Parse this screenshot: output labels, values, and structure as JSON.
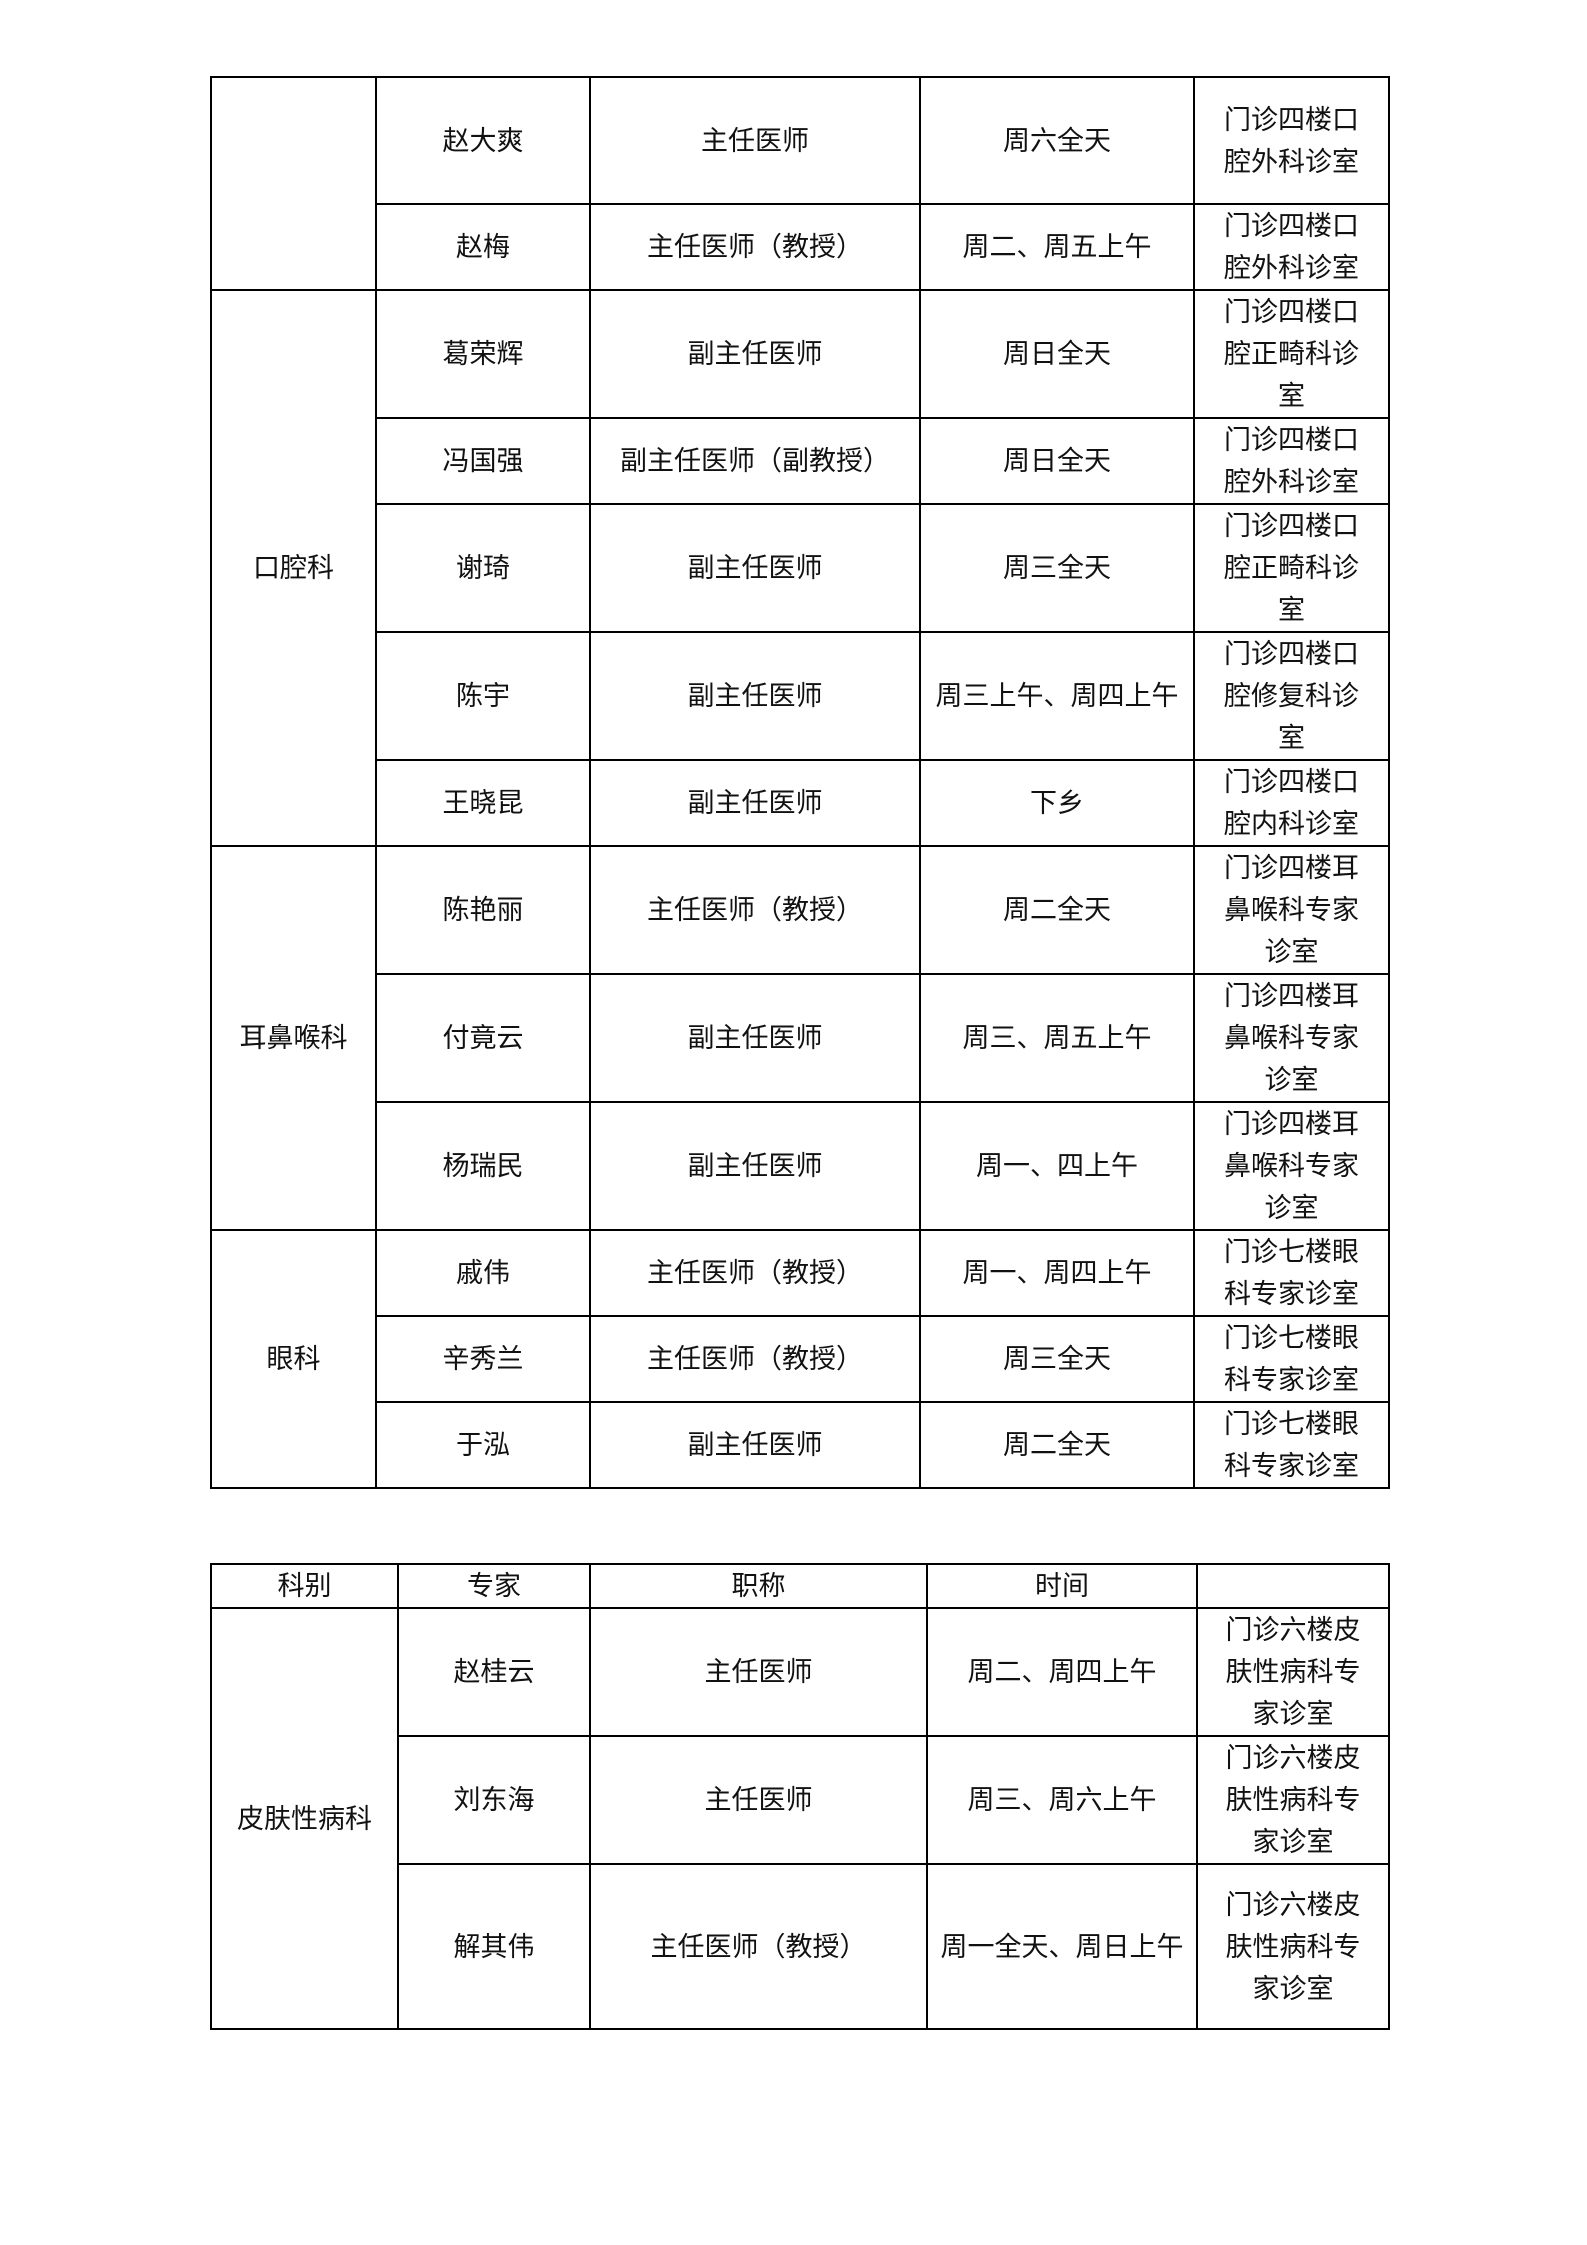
{
  "table1": {
    "groups": [
      {
        "dept": "",
        "rows": [
          {
            "name": "赵大爽",
            "title": "主任医师",
            "time": "周六全天",
            "location": "门诊四楼口腔外科诊室"
          },
          {
            "name": "赵梅",
            "title": "主任医师（教授）",
            "time": "周二、周五上午",
            "location": "门诊四楼口腔外科诊室"
          }
        ]
      },
      {
        "dept": "口腔科",
        "rows": [
          {
            "name": "葛荣辉",
            "title": "副主任医师",
            "time": "周日全天",
            "location": "门诊四楼口腔正畸科诊室"
          },
          {
            "name": "冯国强",
            "title": "副主任医师（副教授）",
            "time": "周日全天",
            "location": "门诊四楼口腔外科诊室"
          },
          {
            "name": "谢琦",
            "title": "副主任医师",
            "time": "周三全天",
            "location": "门诊四楼口腔正畸科诊室"
          },
          {
            "name": "陈宇",
            "title": "副主任医师",
            "time": "周三上午、周四上午",
            "location": "门诊四楼口腔修复科诊室"
          },
          {
            "name": "王晓昆",
            "title": "副主任医师",
            "time": "下乡",
            "location": "门诊四楼口腔内科诊室"
          }
        ]
      },
      {
        "dept": "耳鼻喉科",
        "rows": [
          {
            "name": "陈艳丽",
            "title": "主任医师（教授）",
            "time": "周二全天",
            "location": "门诊四楼耳鼻喉科专家诊室"
          },
          {
            "name": "付竟云",
            "title": "副主任医师",
            "time": "周三、周五上午",
            "location": "门诊四楼耳鼻喉科专家诊室"
          },
          {
            "name": "杨瑞民",
            "title": "副主任医师",
            "time": "周一、四上午",
            "location": "门诊四楼耳鼻喉科专家诊室"
          }
        ]
      },
      {
        "dept": "眼科",
        "rows": [
          {
            "name": "戚伟",
            "title": "主任医师（教授）",
            "time": "周一、周四上午",
            "location": "门诊七楼眼科专家诊室"
          },
          {
            "name": "辛秀兰",
            "title": "主任医师（教授）",
            "time": "周三全天",
            "location": "门诊七楼眼科专家诊室"
          },
          {
            "name": "于泓",
            "title": "副主任医师",
            "time": "周二全天",
            "location": "门诊七楼眼科专家诊室"
          }
        ]
      }
    ]
  },
  "table2": {
    "headers": [
      "科别",
      "专家",
      "职称",
      "时间",
      ""
    ],
    "groups": [
      {
        "dept": "皮肤性病科",
        "rows": [
          {
            "name": "赵桂云",
            "title": "主任医师",
            "time": "周二、周四上午",
            "location": "门诊六楼皮肤性病科专家诊室"
          },
          {
            "name": "刘东海",
            "title": "主任医师",
            "time": "周三、周六上午",
            "location": "门诊六楼皮肤性病科专家诊室"
          },
          {
            "name": "解其伟",
            "title": "主任医师（教授）",
            "time": "周一全天、周日上午",
            "location": "门诊六楼皮肤性病科专家诊室"
          }
        ]
      }
    ]
  }
}
